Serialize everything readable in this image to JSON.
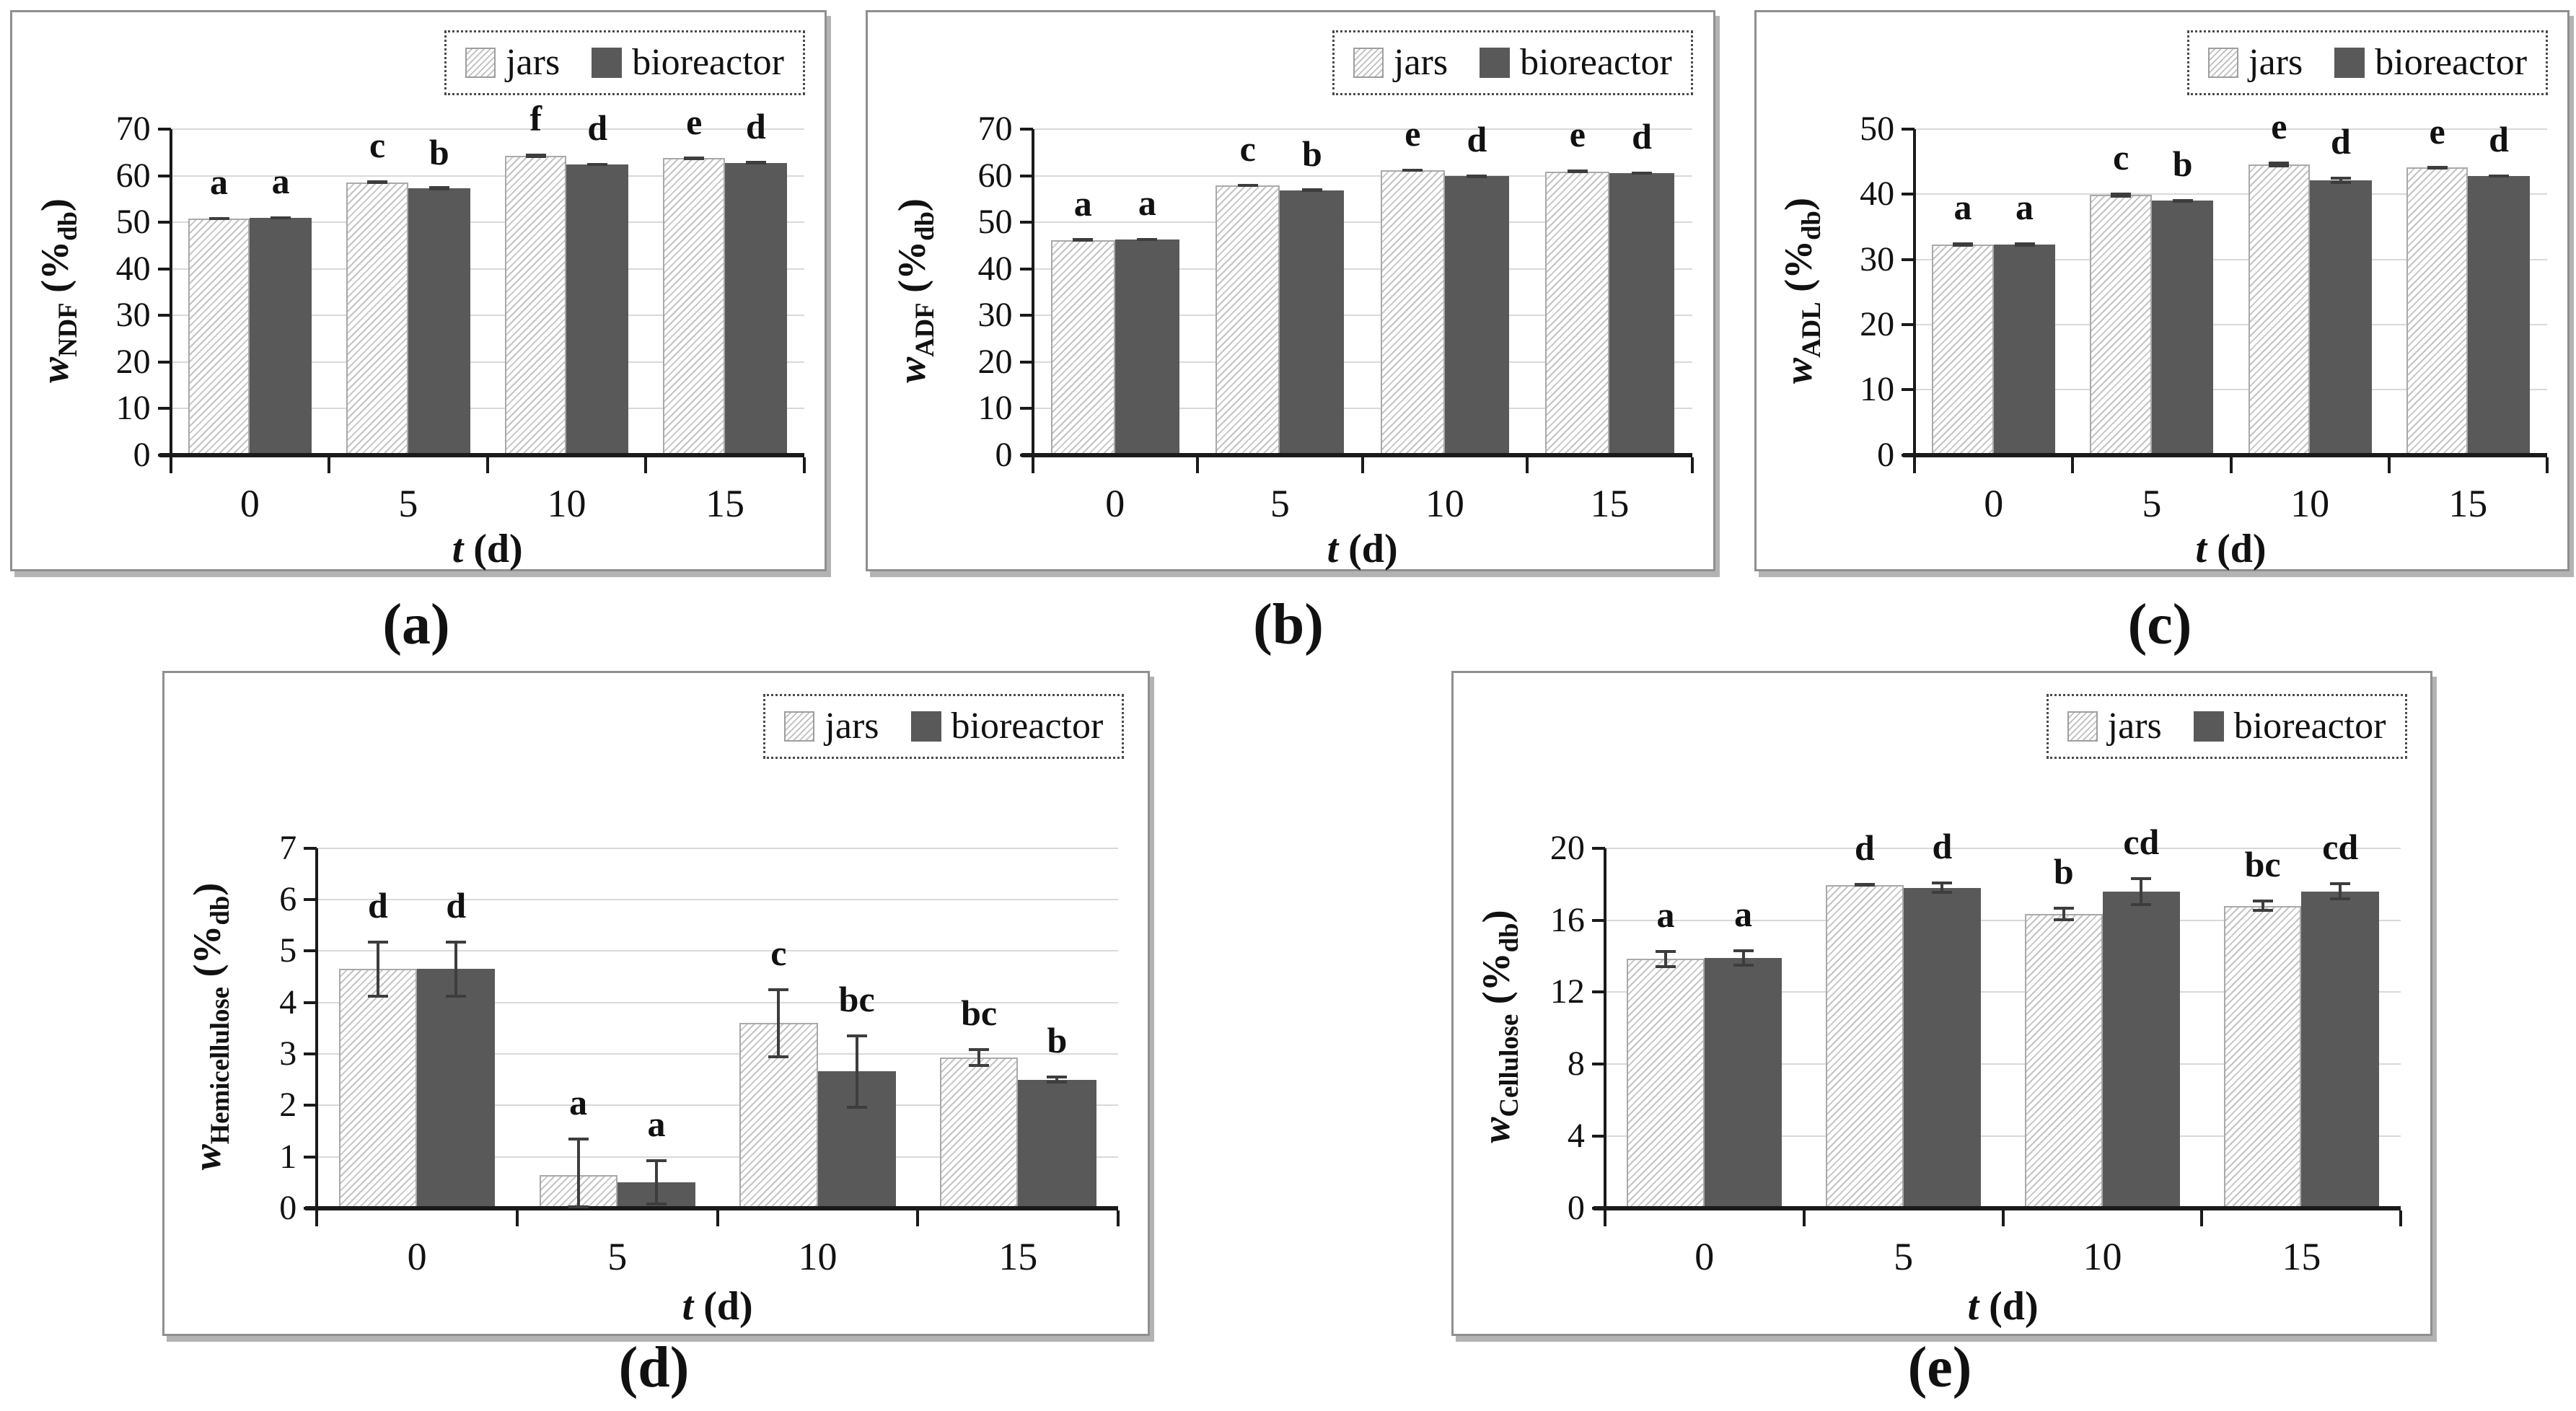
{
  "figure": {
    "captions": {
      "a": "(a)",
      "b": "(b)",
      "c": "(c)",
      "d": "(d)",
      "e": "(e)"
    },
    "colors": {
      "bar_solid": "#595959",
      "bar_hatch_line": "#c3c3c3",
      "bar_border": "#a9a9a9",
      "gridline": "#d9d9d9",
      "axis": "#1a1a1a",
      "error_bar": "#3d3d3d",
      "panel_border": "#8f8f8f",
      "panel_shadow": "#b3b3b3",
      "legend_border": "#4a4a4a"
    }
  },
  "chart_data": [
    {
      "id": "a",
      "caption": "(a)",
      "type": "bar",
      "ylabel": {
        "var": "w",
        "sub": "NDF",
        "unit_open": " (%",
        "unit_sub": "db",
        "unit_close": ")"
      },
      "xlabel": {
        "var": "t",
        "rest": " (d)"
      },
      "ymax": 70,
      "ystep": 10,
      "ylim": [
        0,
        70
      ],
      "grid": true,
      "legend_position": "top-right",
      "categories": [
        "0",
        "5",
        "10",
        "15"
      ],
      "series": [
        {
          "name": "jars",
          "style": "hatched",
          "values": [
            50.8,
            58.6,
            64.3,
            63.8
          ],
          "errors": [
            0.3,
            0.35,
            0.45,
            0.25
          ],
          "letters": [
            "a",
            "c",
            "f",
            "e"
          ]
        },
        {
          "name": "bioreactor",
          "style": "solid",
          "values": [
            51.0,
            57.3,
            62.4,
            62.8
          ],
          "errors": [
            0.3,
            0.2,
            0.35,
            0.2
          ],
          "letters": [
            "a",
            "b",
            "d",
            "d"
          ]
        }
      ]
    },
    {
      "id": "b",
      "caption": "(b)",
      "type": "bar",
      "ylabel": {
        "var": "w",
        "sub": "ADF",
        "unit_open": " (%",
        "unit_sub": "db",
        "unit_close": ")"
      },
      "xlabel": {
        "var": "t",
        "rest": " (d)"
      },
      "ymax": 70,
      "ystep": 10,
      "ylim": [
        0,
        70
      ],
      "grid": true,
      "legend_position": "top-right",
      "categories": [
        "0",
        "5",
        "10",
        "15"
      ],
      "series": [
        {
          "name": "jars",
          "style": "hatched",
          "values": [
            46.2,
            57.9,
            61.2,
            60.9
          ],
          "errors": [
            0.25,
            0.3,
            0.3,
            0.4
          ],
          "letters": [
            "a",
            "c",
            "e",
            "e"
          ]
        },
        {
          "name": "bioreactor",
          "style": "solid",
          "values": [
            46.3,
            56.9,
            59.9,
            60.5
          ],
          "errors": [
            0.25,
            0.2,
            0.35,
            0.3
          ],
          "letters": [
            "a",
            "b",
            "d",
            "d"
          ]
        }
      ]
    },
    {
      "id": "c",
      "caption": "(c)",
      "type": "bar",
      "ylabel": {
        "var": "w",
        "sub": "ADL",
        "unit_open": " (%",
        "unit_sub": "db",
        "unit_close": ")"
      },
      "xlabel": {
        "var": "t",
        "rest": " (d)"
      },
      "ymax": 50,
      "ystep": 10,
      "ylim": [
        0,
        50
      ],
      "grid": true,
      "legend_position": "top-right",
      "categories": [
        "0",
        "5",
        "10",
        "15"
      ],
      "series": [
        {
          "name": "jars",
          "style": "hatched",
          "values": [
            32.3,
            39.9,
            44.6,
            44.1
          ],
          "errors": [
            0.3,
            0.35,
            0.4,
            0.2
          ],
          "letters": [
            "a",
            "c",
            "e",
            "e"
          ]
        },
        {
          "name": "bioreactor",
          "style": "solid",
          "values": [
            32.3,
            39.0,
            42.2,
            42.8
          ],
          "errors": [
            0.3,
            0.3,
            0.55,
            0.25
          ],
          "letters": [
            "a",
            "b",
            "d",
            "d"
          ]
        }
      ]
    },
    {
      "id": "d",
      "caption": "(d)",
      "type": "bar",
      "ylabel": {
        "var": "w",
        "sub": "Hemicellulose",
        "unit_open": " (%",
        "unit_sub": "db",
        "unit_close": ")"
      },
      "xlabel": {
        "var": "t",
        "rest": " (d)"
      },
      "ymax": 7,
      "ystep": 1,
      "ylim": [
        0,
        7
      ],
      "grid": true,
      "legend_position": "top-right",
      "categories": [
        "0",
        "5",
        "10",
        "15"
      ],
      "series": [
        {
          "name": "jars",
          "style": "hatched",
          "values": [
            4.65,
            0.65,
            3.6,
            2.93
          ],
          "errors": [
            0.55,
            0.73,
            0.68,
            0.18
          ],
          "letters": [
            "d",
            "a",
            "c",
            "bc"
          ]
        },
        {
          "name": "bioreactor",
          "style": "solid",
          "values": [
            4.65,
            0.5,
            2.66,
            2.5
          ],
          "errors": [
            0.55,
            0.45,
            0.72,
            0.08
          ],
          "letters": [
            "d",
            "a",
            "bc",
            "b"
          ]
        }
      ]
    },
    {
      "id": "e",
      "caption": "(e)",
      "type": "bar",
      "ylabel": {
        "var": "w",
        "sub": "Cellulose",
        "unit_open": " (%",
        "unit_sub": "db",
        "unit_close": ")"
      },
      "xlabel": {
        "var": "t",
        "rest": " (d)"
      },
      "ymax": 20,
      "ystep": 4,
      "ylim": [
        0,
        20
      ],
      "grid": true,
      "legend_position": "top-right",
      "categories": [
        "0",
        "5",
        "10",
        "15"
      ],
      "series": [
        {
          "name": "jars",
          "style": "hatched",
          "values": [
            13.85,
            17.95,
            16.35,
            16.8
          ],
          "errors": [
            0.5,
            0.1,
            0.4,
            0.35
          ],
          "letters": [
            "a",
            "d",
            "b",
            "bc"
          ]
        },
        {
          "name": "bioreactor",
          "style": "solid",
          "values": [
            13.9,
            17.8,
            17.6,
            17.6
          ],
          "errors": [
            0.5,
            0.35,
            0.8,
            0.5
          ],
          "letters": [
            "a",
            "d",
            "cd",
            "cd"
          ]
        }
      ]
    }
  ]
}
